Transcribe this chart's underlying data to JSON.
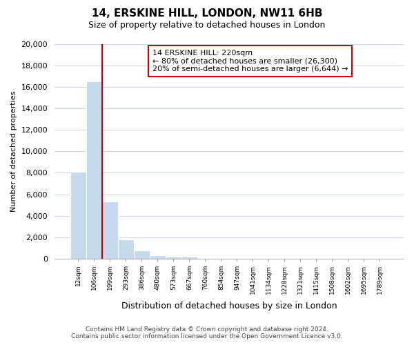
{
  "title": "14, ERSKINE HILL, LONDON, NW11 6HB",
  "subtitle": "Size of property relative to detached houses in London",
  "xlabel": "Distribution of detached houses by size in London",
  "ylabel": "Number of detached properties",
  "bar_values": [
    8100,
    16500,
    5300,
    1800,
    750,
    300,
    200,
    150,
    0,
    0,
    0,
    0,
    0,
    0,
    0,
    0,
    0,
    0,
    0,
    0
  ],
  "bar_labels": [
    "12sqm",
    "106sqm",
    "199sqm",
    "293sqm",
    "386sqm",
    "480sqm",
    "573sqm",
    "667sqm",
    "760sqm",
    "854sqm",
    "947sqm",
    "1041sqm",
    "1134sqm",
    "1228sqm",
    "1321sqm",
    "1415sqm",
    "1508sqm",
    "1602sqm",
    "1695sqm",
    "1789sqm"
  ],
  "bar_color": "#c5d8ee",
  "vline_x": 1.5,
  "vline_color": "#cc0000",
  "annotation_title": "14 ERSKINE HILL: 220sqm",
  "annotation_line1": "← 80% of detached houses are smaller (26,300)",
  "annotation_line2": "20% of semi-detached houses are larger (6,644) →",
  "annotation_box_color": "#ffffff",
  "annotation_box_edge": "#cc0000",
  "ylim": [
    0,
    20000
  ],
  "yticks": [
    0,
    2000,
    4000,
    6000,
    8000,
    10000,
    12000,
    14000,
    16000,
    18000,
    20000
  ],
  "grid_color": "#cdd8e8",
  "footer_line1": "Contains HM Land Registry data © Crown copyright and database right 2024.",
  "footer_line2": "Contains public sector information licensed under the Open Government Licence v3.0.",
  "figsize": [
    6.0,
    5.0
  ],
  "dpi": 100
}
